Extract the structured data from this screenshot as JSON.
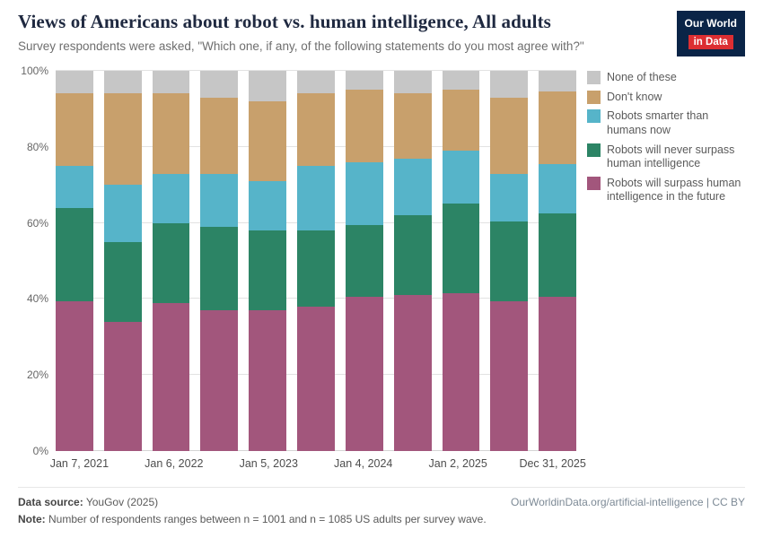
{
  "header": {
    "title": "Views of Americans about robot vs. human intelligence, All adults",
    "subtitle": "Survey respondents were asked, \"Which one, if any, of the following statements do you most agree with?\"",
    "logo": {
      "line1": "Our World",
      "line2": "in Data"
    }
  },
  "chart_data": {
    "type": "bar",
    "stacked": true,
    "bar_count": 11,
    "ylim": [
      0,
      100
    ],
    "grid": true,
    "legend_position": "right",
    "y_ticks": [
      {
        "value": 0,
        "label": "0%"
      },
      {
        "value": 20,
        "label": "20%"
      },
      {
        "value": 40,
        "label": "40%"
      },
      {
        "value": 60,
        "label": "60%"
      },
      {
        "value": 80,
        "label": "80%"
      },
      {
        "value": 100,
        "label": "100%"
      }
    ],
    "x_tick_labels": [
      {
        "index": 0,
        "label": "Jan 7, 2021"
      },
      {
        "index": 2,
        "label": "Jan 6, 2022"
      },
      {
        "index": 4,
        "label": "Jan 5, 2023"
      },
      {
        "index": 6,
        "label": "Jan 4, 2024"
      },
      {
        "index": 8,
        "label": "Jan 2, 2025"
      },
      {
        "index": 10,
        "label": "Dec 31, 2025"
      }
    ],
    "series": [
      {
        "name": "Robots will surpass human intelligence in the future",
        "color": "#a2567c",
        "values": [
          39.5,
          34,
          39,
          37,
          37,
          38,
          40.5,
          41,
          41.5,
          39.5,
          40.5
        ]
      },
      {
        "name": "Robots will never surpass human intelligence",
        "color": "#2c8465",
        "values": [
          24.5,
          21,
          21,
          22,
          21,
          20,
          19,
          21,
          23.5,
          21,
          22
        ]
      },
      {
        "name": "Robots smarter than humans now",
        "color": "#56b4c9",
        "values": [
          11,
          15,
          13,
          14,
          13,
          17,
          16.5,
          15,
          14,
          12.5,
          13
        ]
      },
      {
        "name": "Don't know",
        "color": "#c8a06c",
        "values": [
          19,
          24,
          21,
          20,
          21,
          19,
          19,
          17,
          16,
          20,
          19
        ]
      },
      {
        "name": "None of these",
        "color": "#c6c6c6",
        "values": [
          6,
          6,
          6,
          7,
          8,
          6,
          5,
          6,
          5,
          7,
          5.5
        ]
      }
    ]
  },
  "footer": {
    "source_label": "Data source:",
    "source": "YouGov (2025)",
    "link": "OurWorldinData.org/artificial-intelligence | CC BY",
    "note_label": "Note:",
    "note": "Number of respondents ranges between n = 1001 and n = 1085 US adults per survey wave."
  }
}
